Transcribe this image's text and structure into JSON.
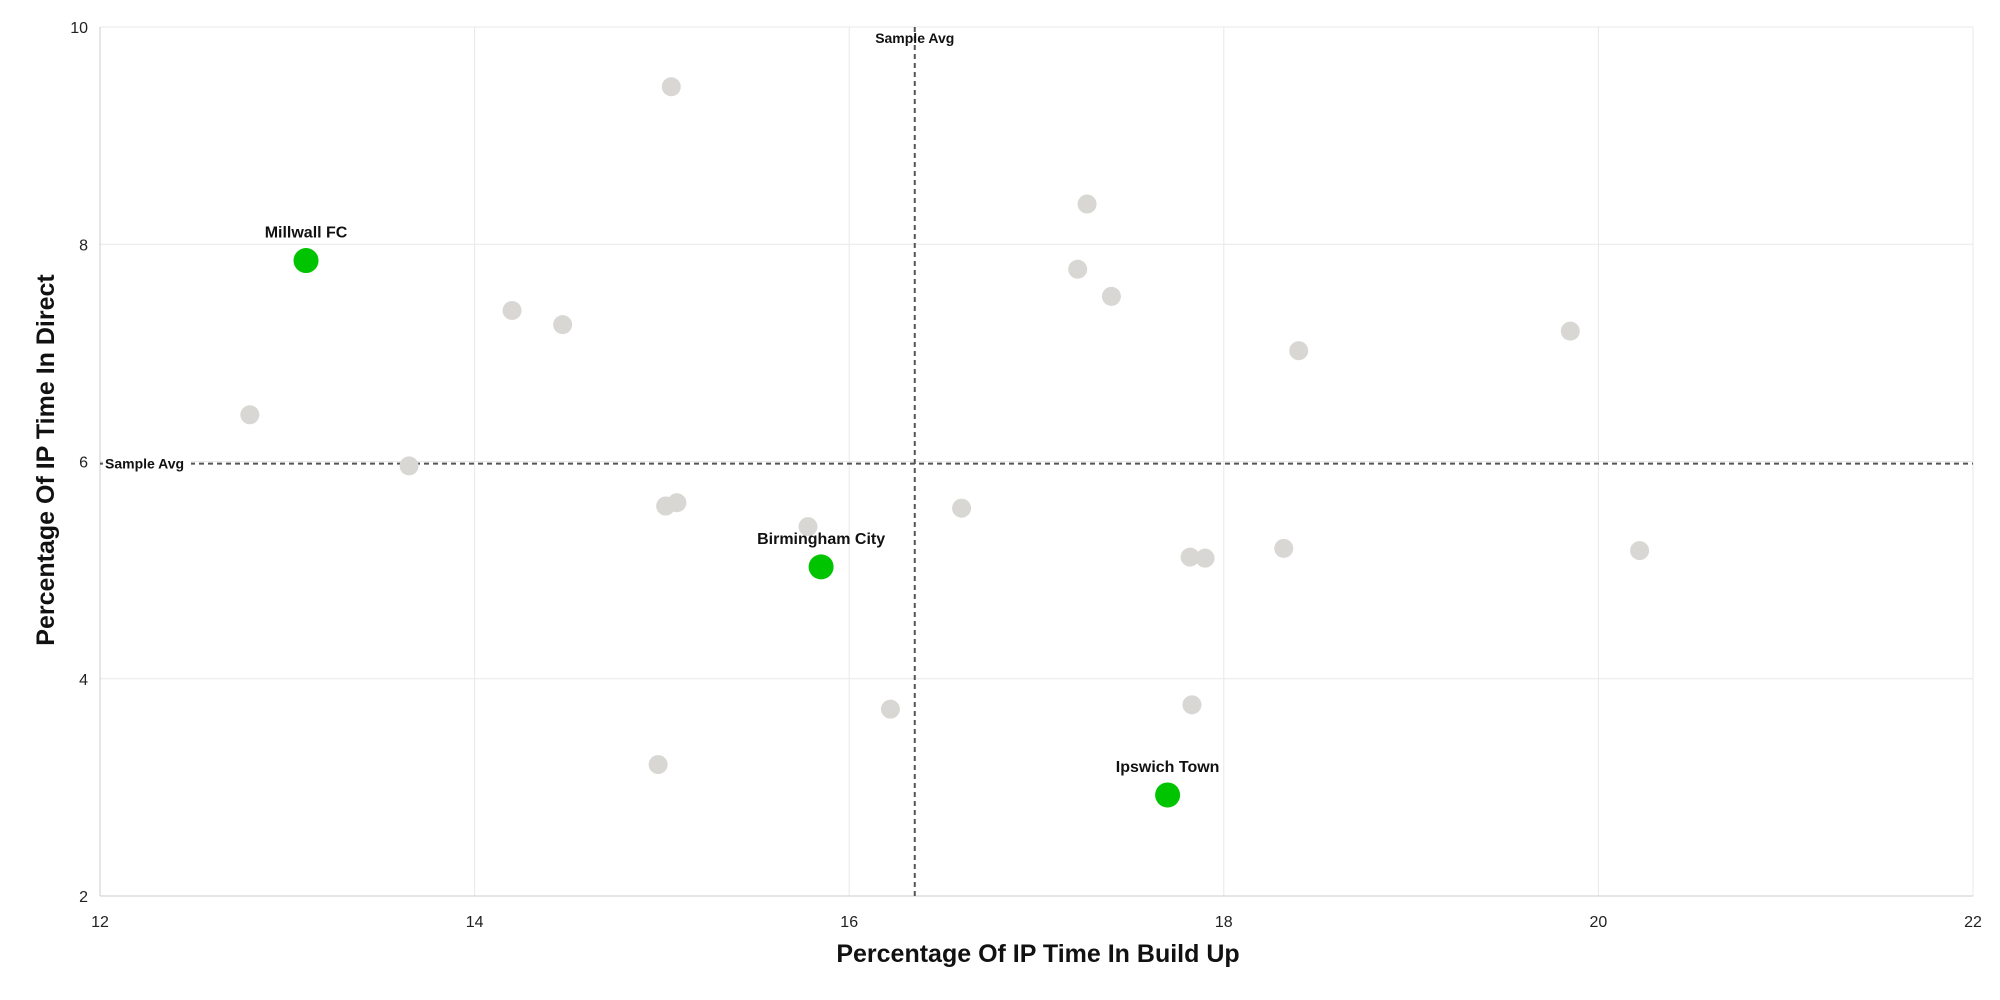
{
  "chart_data": {
    "type": "scatter",
    "xlabel": "Percentage Of IP Time In Build Up",
    "ylabel": "Percentage Of IP Time In Direct",
    "xlim": [
      12,
      22
    ],
    "ylim": [
      2,
      10
    ],
    "x_ticks": [
      "12",
      "14",
      "16",
      "18",
      "20",
      "22"
    ],
    "y_ticks": [
      "2",
      "4",
      "6",
      "8",
      "10"
    ],
    "grid": true,
    "reference_lines": {
      "x_avg": 16.35,
      "y_avg": 5.98,
      "label": "Sample Avg"
    },
    "colors": {
      "highlight": "#00c400",
      "other": "#d9d7d4",
      "grid": "#e8e8e8",
      "reference_line": "#555555"
    },
    "highlighted": [
      {
        "label": "Millwall FC",
        "x": 13.1,
        "y": 7.85
      },
      {
        "label": "Birmingham City",
        "x": 15.85,
        "y": 5.03
      },
      {
        "label": "Ipswich Town",
        "x": 17.7,
        "y": 2.93
      }
    ],
    "others": [
      {
        "x": 15.05,
        "y": 9.45
      },
      {
        "x": 17.27,
        "y": 8.37
      },
      {
        "x": 17.22,
        "y": 7.77
      },
      {
        "x": 17.4,
        "y": 7.52
      },
      {
        "x": 14.2,
        "y": 7.39
      },
      {
        "x": 14.47,
        "y": 7.26
      },
      {
        "x": 19.85,
        "y": 7.2
      },
      {
        "x": 18.4,
        "y": 7.02
      },
      {
        "x": 12.8,
        "y": 6.43
      },
      {
        "x": 13.65,
        "y": 5.96
      },
      {
        "x": 15.08,
        "y": 5.62
      },
      {
        "x": 15.02,
        "y": 5.59
      },
      {
        "x": 16.6,
        "y": 5.57
      },
      {
        "x": 15.78,
        "y": 5.4
      },
      {
        "x": 18.32,
        "y": 5.2
      },
      {
        "x": 20.22,
        "y": 5.18
      },
      {
        "x": 17.82,
        "y": 5.12
      },
      {
        "x": 17.9,
        "y": 5.11
      },
      {
        "x": 16.22,
        "y": 3.72
      },
      {
        "x": 17.83,
        "y": 3.76
      },
      {
        "x": 14.98,
        "y": 3.21
      }
    ]
  }
}
